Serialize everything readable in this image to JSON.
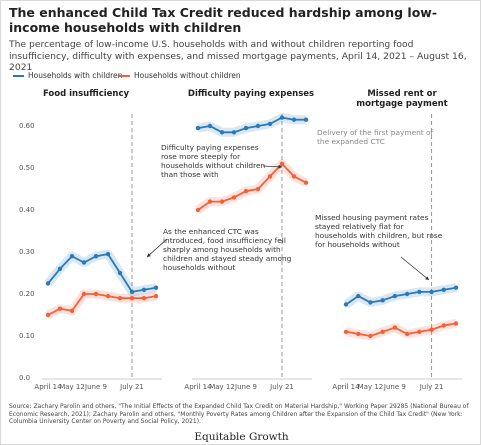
{
  "title": "The enhanced Child Tax Credit reduced hardship among low-income households with children",
  "subtitle": "The percentage of low-income U.S. households with and without children reporting food insufficiency, difficulty with expenses, and missed mortgage payments, April 14, 2021 – August 16, 2021",
  "source": "Source: Zachary Parolin and others, \"The Initial Effects of the Expanded Child Tax Credit on Material Hardship,\" Working Paper 29285 (National Bureau of Economic Research, 2021); Zachary Parolin and others, \"Monthly Poverty Rates among Children after the Expansion of the Child Tax Credit\" (New York: Columbia University Center on Poverty and Social Policy, 2021).",
  "brand": "Equitable Growth",
  "chart_data": [
    {
      "type": "line",
      "title": "Food insufficiency",
      "categories": [
        "April 14",
        null,
        "May 12",
        null,
        "June 9",
        null,
        null,
        "July 21",
        null,
        null
      ],
      "ylim": [
        0,
        0.6
      ],
      "yticks": [
        {
          "value": 0,
          "label": "0.0"
        },
        {
          "value": 0.1,
          "label": "0.10"
        },
        {
          "value": 0.2,
          "label": "0.20"
        },
        {
          "value": 0.3,
          "label": "0.30"
        },
        {
          "value": 0.4,
          "label": "0.40"
        },
        {
          "value": 0.5,
          "label": "0.50"
        },
        {
          "value": 0.6,
          "label": "0.60"
        }
      ],
      "series": [
        {
          "name": "Households with children",
          "color": "#2a7ab9",
          "values": [
            0.225,
            0.26,
            0.29,
            0.275,
            0.29,
            0.295,
            0.25,
            0.205,
            0.21,
            0.215
          ]
        },
        {
          "name": "Households without children",
          "color": "#f2603c",
          "values": [
            0.15,
            0.165,
            0.16,
            0.2,
            0.2,
            0.195,
            0.19,
            0.19,
            0.19,
            0.195
          ]
        }
      ],
      "annotations": [
        "As the enhanced CTC was introduced, food insufficiency fell sharply among households with children and stayed steady among households without"
      ]
    },
    {
      "type": "line",
      "title": "Difficulty paying expenses",
      "categories": [
        "April 14",
        null,
        "May 12",
        null,
        "June 9",
        null,
        null,
        "July 21",
        null,
        null
      ],
      "ylim": [
        0,
        0.6
      ],
      "series": [
        {
          "color": "#2a7ab9",
          "values": [
            0.595,
            0.6,
            0.585,
            0.585,
            0.595,
            0.6,
            0.605,
            0.62,
            0.615,
            0.615
          ]
        },
        {
          "color": "#f2603c",
          "values": [
            0.4,
            0.42,
            0.42,
            0.43,
            0.445,
            0.45,
            0.48,
            0.51,
            0.48,
            0.465
          ]
        }
      ],
      "annotations": [
        "Difficulty paying expenses rose more steeply for households without children than those with",
        "Delivery of the first payment of the expanded CTC"
      ]
    },
    {
      "type": "line",
      "title": "Missed rent or mortgage payment",
      "categories": [
        "April 14",
        null,
        "May 12",
        null,
        "June 9",
        null,
        null,
        "July 21",
        null,
        null
      ],
      "ylim": [
        0,
        0.6
      ],
      "series": [
        {
          "color": "#2a7ab9",
          "values": [
            0.175,
            0.195,
            0.18,
            0.185,
            0.195,
            0.2,
            0.205,
            0.205,
            0.21,
            0.215
          ]
        },
        {
          "color": "#f2603c",
          "values": [
            0.11,
            0.105,
            0.1,
            0.11,
            0.12,
            0.105,
            0.11,
            0.115,
            0.125,
            0.13
          ]
        }
      ],
      "annotations": [
        "Missed housing payment rates stayed relatively flat for households with children, but rose for households without"
      ]
    }
  ]
}
